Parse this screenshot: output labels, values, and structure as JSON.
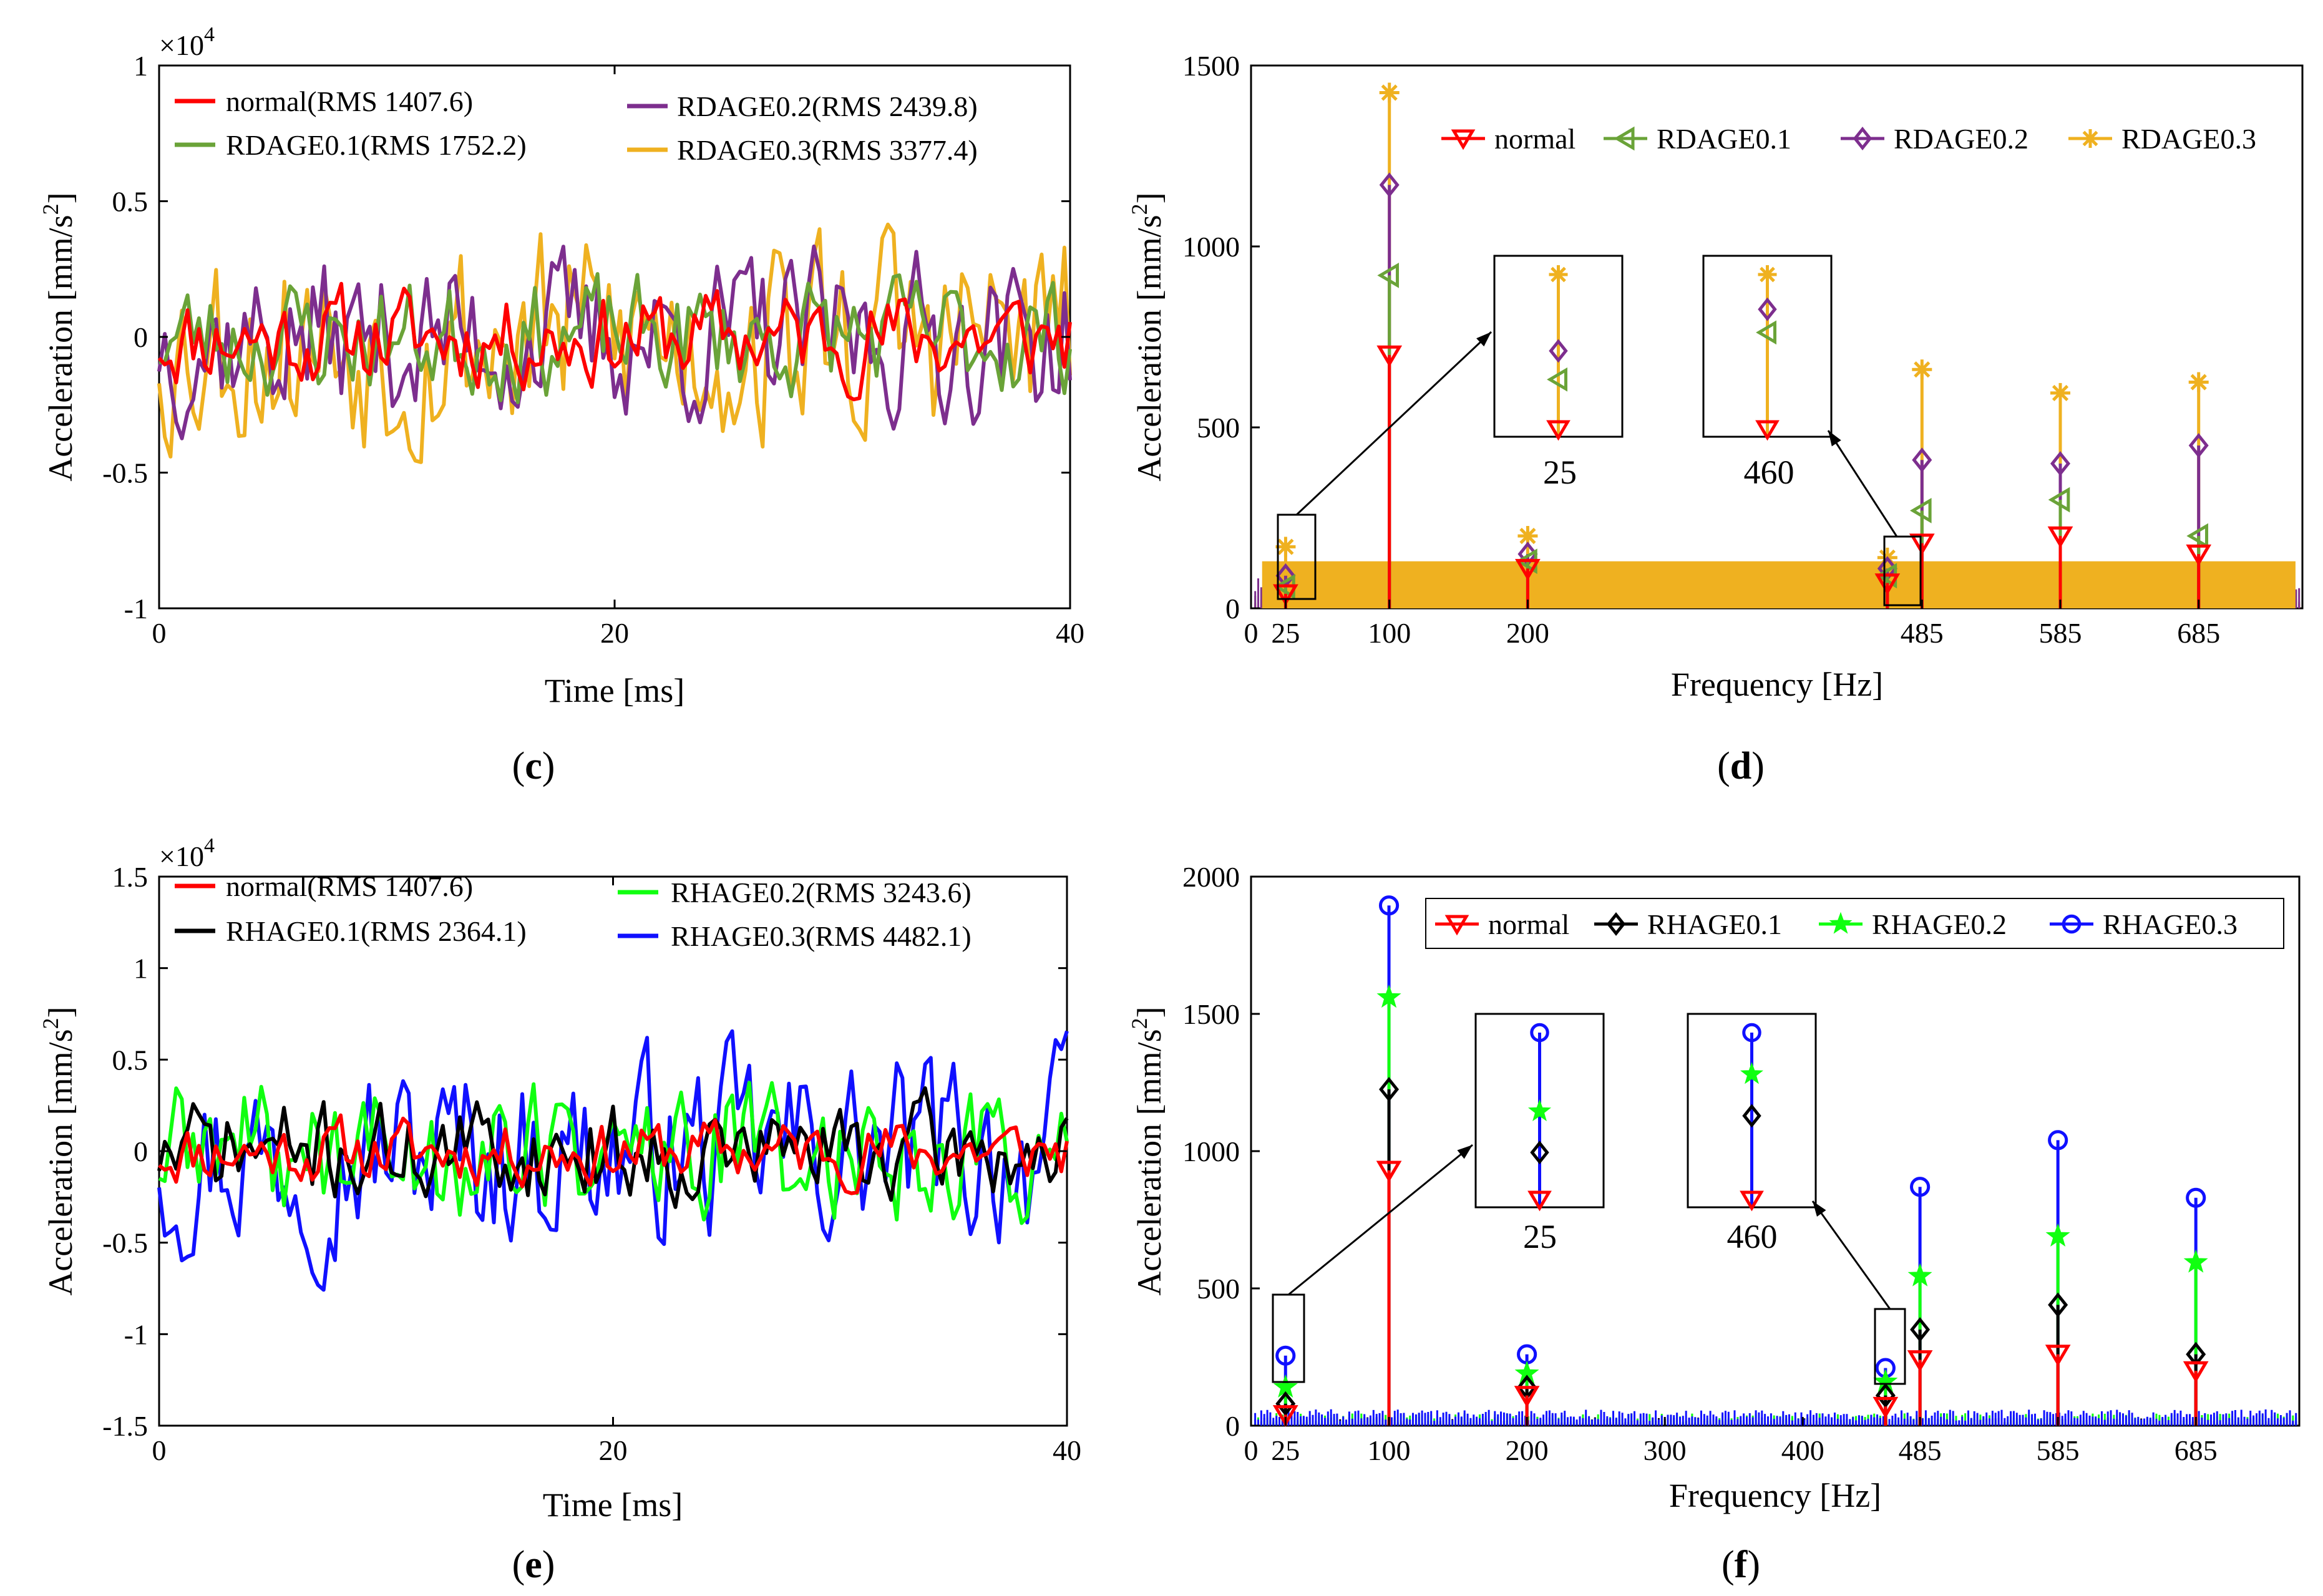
{
  "figure": {
    "panel_labels": [
      {
        "open": "(",
        "letter": "c",
        "close": ")"
      },
      {
        "open": "(",
        "letter": "d",
        "close": ")"
      },
      {
        "open": "(",
        "letter": "e",
        "close": ")"
      },
      {
        "open": "(",
        "letter": "f",
        "close": ")"
      }
    ]
  },
  "chart_data": [
    {
      "panel": "c",
      "type": "line",
      "title": "",
      "xlabel": "Time [ms]",
      "ylabel_main": "Acceleration [mm/s",
      "ylabel_sup": "2",
      "ylabel_close": "]",
      "exponent_base": "×10",
      "exponent_power": "4",
      "xlim": [
        0,
        40
      ],
      "ylim": [
        -1,
        1
      ],
      "xticks": [
        "0",
        "20",
        "40"
      ],
      "yticks": [
        "1",
        "0.5",
        "0",
        "-0.5",
        "-1"
      ],
      "legend_layout": "two-column, top",
      "series": [
        {
          "name": "normal(RMS 1407.6)",
          "color": "#ff0000",
          "amplitude": 0.17,
          "seed": 11
        },
        {
          "name": "RDAGE0.1(RMS 1752.2)",
          "color": "#6aa338",
          "amplitude": 0.21,
          "seed": 23
        },
        {
          "name": "RDAGE0.2(RMS 2439.8)",
          "color": "#7d2e8e",
          "amplitude": 0.29,
          "seed": 37
        },
        {
          "name": "RDAGE0.3(RMS 3377.4)",
          "color": "#efb120",
          "amplitude": 0.4,
          "seed": 53
        }
      ],
      "samples": 160
    },
    {
      "panel": "d",
      "type": "line",
      "title": "",
      "xlabel": "Frequency [Hz]",
      "ylabel_main": "Acceleration [mm/s",
      "ylabel_sup": "2",
      "ylabel_close": "]",
      "xlim": [
        0,
        760
      ],
      "ylim": [
        0,
        1500
      ],
      "xticks": [
        "0",
        "25",
        "100",
        "200",
        "485",
        "585",
        "685"
      ],
      "xtick_values": [
        0,
        25,
        100,
        200,
        485,
        585,
        685
      ],
      "yticks": [
        "1500",
        "1000",
        "500",
        "0"
      ],
      "ytick_values": [
        1500,
        1000,
        500,
        0
      ],
      "legend_layout": "single row, top-right",
      "noise_band_max": 130,
      "series": [
        {
          "name": "normal",
          "color": "#ff0000",
          "marker": "triangle-down",
          "peaks": [
            [
              25,
              40
            ],
            [
              100,
              700
            ],
            [
              200,
              110
            ],
            [
              460,
              70
            ],
            [
              485,
              180
            ],
            [
              585,
              200
            ],
            [
              685,
              150
            ]
          ]
        },
        {
          "name": "RDAGE0.1",
          "color": "#6aa338",
          "marker": "triangle-left",
          "peaks": [
            [
              25,
              60
            ],
            [
              100,
              920
            ],
            [
              200,
              130
            ],
            [
              460,
              90
            ],
            [
              485,
              270
            ],
            [
              585,
              300
            ],
            [
              685,
              200
            ]
          ]
        },
        {
          "name": "RDAGE0.2",
          "color": "#7d2e8e",
          "marker": "diamond",
          "peaks": [
            [
              25,
              90
            ],
            [
              100,
              1170
            ],
            [
              200,
              150
            ],
            [
              460,
              110
            ],
            [
              485,
              410
            ],
            [
              585,
              400
            ],
            [
              685,
              450
            ]
          ]
        },
        {
          "name": "RDAGE0.3",
          "color": "#efb120",
          "marker": "asterisk",
          "peaks": [
            [
              25,
              170
            ],
            [
              100,
              1425
            ],
            [
              200,
              200
            ],
            [
              460,
              140
            ],
            [
              485,
              660
            ],
            [
              585,
              595
            ],
            [
              685,
              625
            ]
          ]
        }
      ],
      "insets": [
        {
          "label": "25",
          "values": [
            40,
            60,
            90,
            170
          ]
        },
        {
          "label": "460",
          "values": [
            70,
            90,
            110,
            140
          ]
        }
      ]
    },
    {
      "panel": "e",
      "type": "line",
      "title": "",
      "xlabel": "Time [ms]",
      "ylabel_main": "Acceleration [mm/s",
      "ylabel_sup": "2",
      "ylabel_close": "]",
      "exponent_base": "×10",
      "exponent_power": "4",
      "xlim": [
        0,
        40
      ],
      "ylim": [
        -1.5,
        1.5
      ],
      "xticks": [
        "0",
        "20",
        "40"
      ],
      "yticks": [
        "1.5",
        "1",
        "0.5",
        "0",
        "-0.5",
        "-1",
        "-1.5"
      ],
      "legend_layout": "two-column, top",
      "series": [
        {
          "name": "normal(RMS 1407.6)",
          "color": "#ff0000",
          "amplitude": 0.17,
          "seed": 11
        },
        {
          "name": "RHAGE0.1(RMS 2364.1)",
          "color": "#000000",
          "amplitude": 0.26,
          "seed": 71
        },
        {
          "name": "RHAGE0.2(RMS 3243.6)",
          "color": "#10ff10",
          "amplitude": 0.37,
          "seed": 89
        },
        {
          "name": "RHAGE0.3(RMS 4482.1)",
          "color": "#1010ff",
          "amplitude": 0.5,
          "seed": 97
        }
      ],
      "samples": 160
    },
    {
      "panel": "f",
      "type": "line",
      "title": "",
      "xlabel": "Frequency [Hz]",
      "ylabel_main": "Acceleration [mm/s",
      "ylabel_sup": "2",
      "ylabel_close": "]",
      "xlim": [
        0,
        760
      ],
      "ylim": [
        0,
        2000
      ],
      "xticks": [
        "0",
        "25",
        "100",
        "200",
        "300",
        "400",
        "485",
        "585",
        "685"
      ],
      "xtick_values": [
        0,
        25,
        100,
        200,
        300,
        400,
        485,
        585,
        685
      ],
      "yticks": [
        "2000",
        "1500",
        "1000",
        "500",
        "0"
      ],
      "ytick_values": [
        2000,
        1500,
        1000,
        500,
        0
      ],
      "legend_layout": "single row, top-right, boxed",
      "noise_band_max": 70,
      "series": [
        {
          "name": "normal",
          "color": "#ff0000",
          "marker": "triangle-down",
          "peaks": [
            [
              25,
              40
            ],
            [
              100,
              930
            ],
            [
              200,
              110
            ],
            [
              460,
              70
            ],
            [
              485,
              240
            ],
            [
              585,
              260
            ],
            [
              685,
              200
            ]
          ]
        },
        {
          "name": "RHAGE0.1",
          "color": "#000000",
          "marker": "diamond",
          "peaks": [
            [
              25,
              80
            ],
            [
              100,
              1225
            ],
            [
              200,
              140
            ],
            [
              460,
              110
            ],
            [
              485,
              350
            ],
            [
              585,
              440
            ],
            [
              685,
              260
            ]
          ]
        },
        {
          "name": "RHAGE0.2",
          "color": "#10ff10",
          "marker": "star",
          "peaks": [
            [
              25,
              140
            ],
            [
              100,
              1560
            ],
            [
              200,
              190
            ],
            [
              460,
              160
            ],
            [
              485,
              545
            ],
            [
              585,
              690
            ],
            [
              685,
              595
            ]
          ]
        },
        {
          "name": "RHAGE0.3",
          "color": "#1010ff",
          "marker": "circle",
          "peaks": [
            [
              25,
              255
            ],
            [
              100,
              1895
            ],
            [
              200,
              260
            ],
            [
              460,
              210
            ],
            [
              485,
              870
            ],
            [
              585,
              1040
            ],
            [
              685,
              830
            ]
          ]
        }
      ],
      "insets": [
        {
          "label": "25",
          "values": [
            40,
            80,
            140,
            255
          ]
        },
        {
          "label": "460",
          "values": [
            70,
            110,
            160,
            210
          ]
        }
      ]
    }
  ]
}
